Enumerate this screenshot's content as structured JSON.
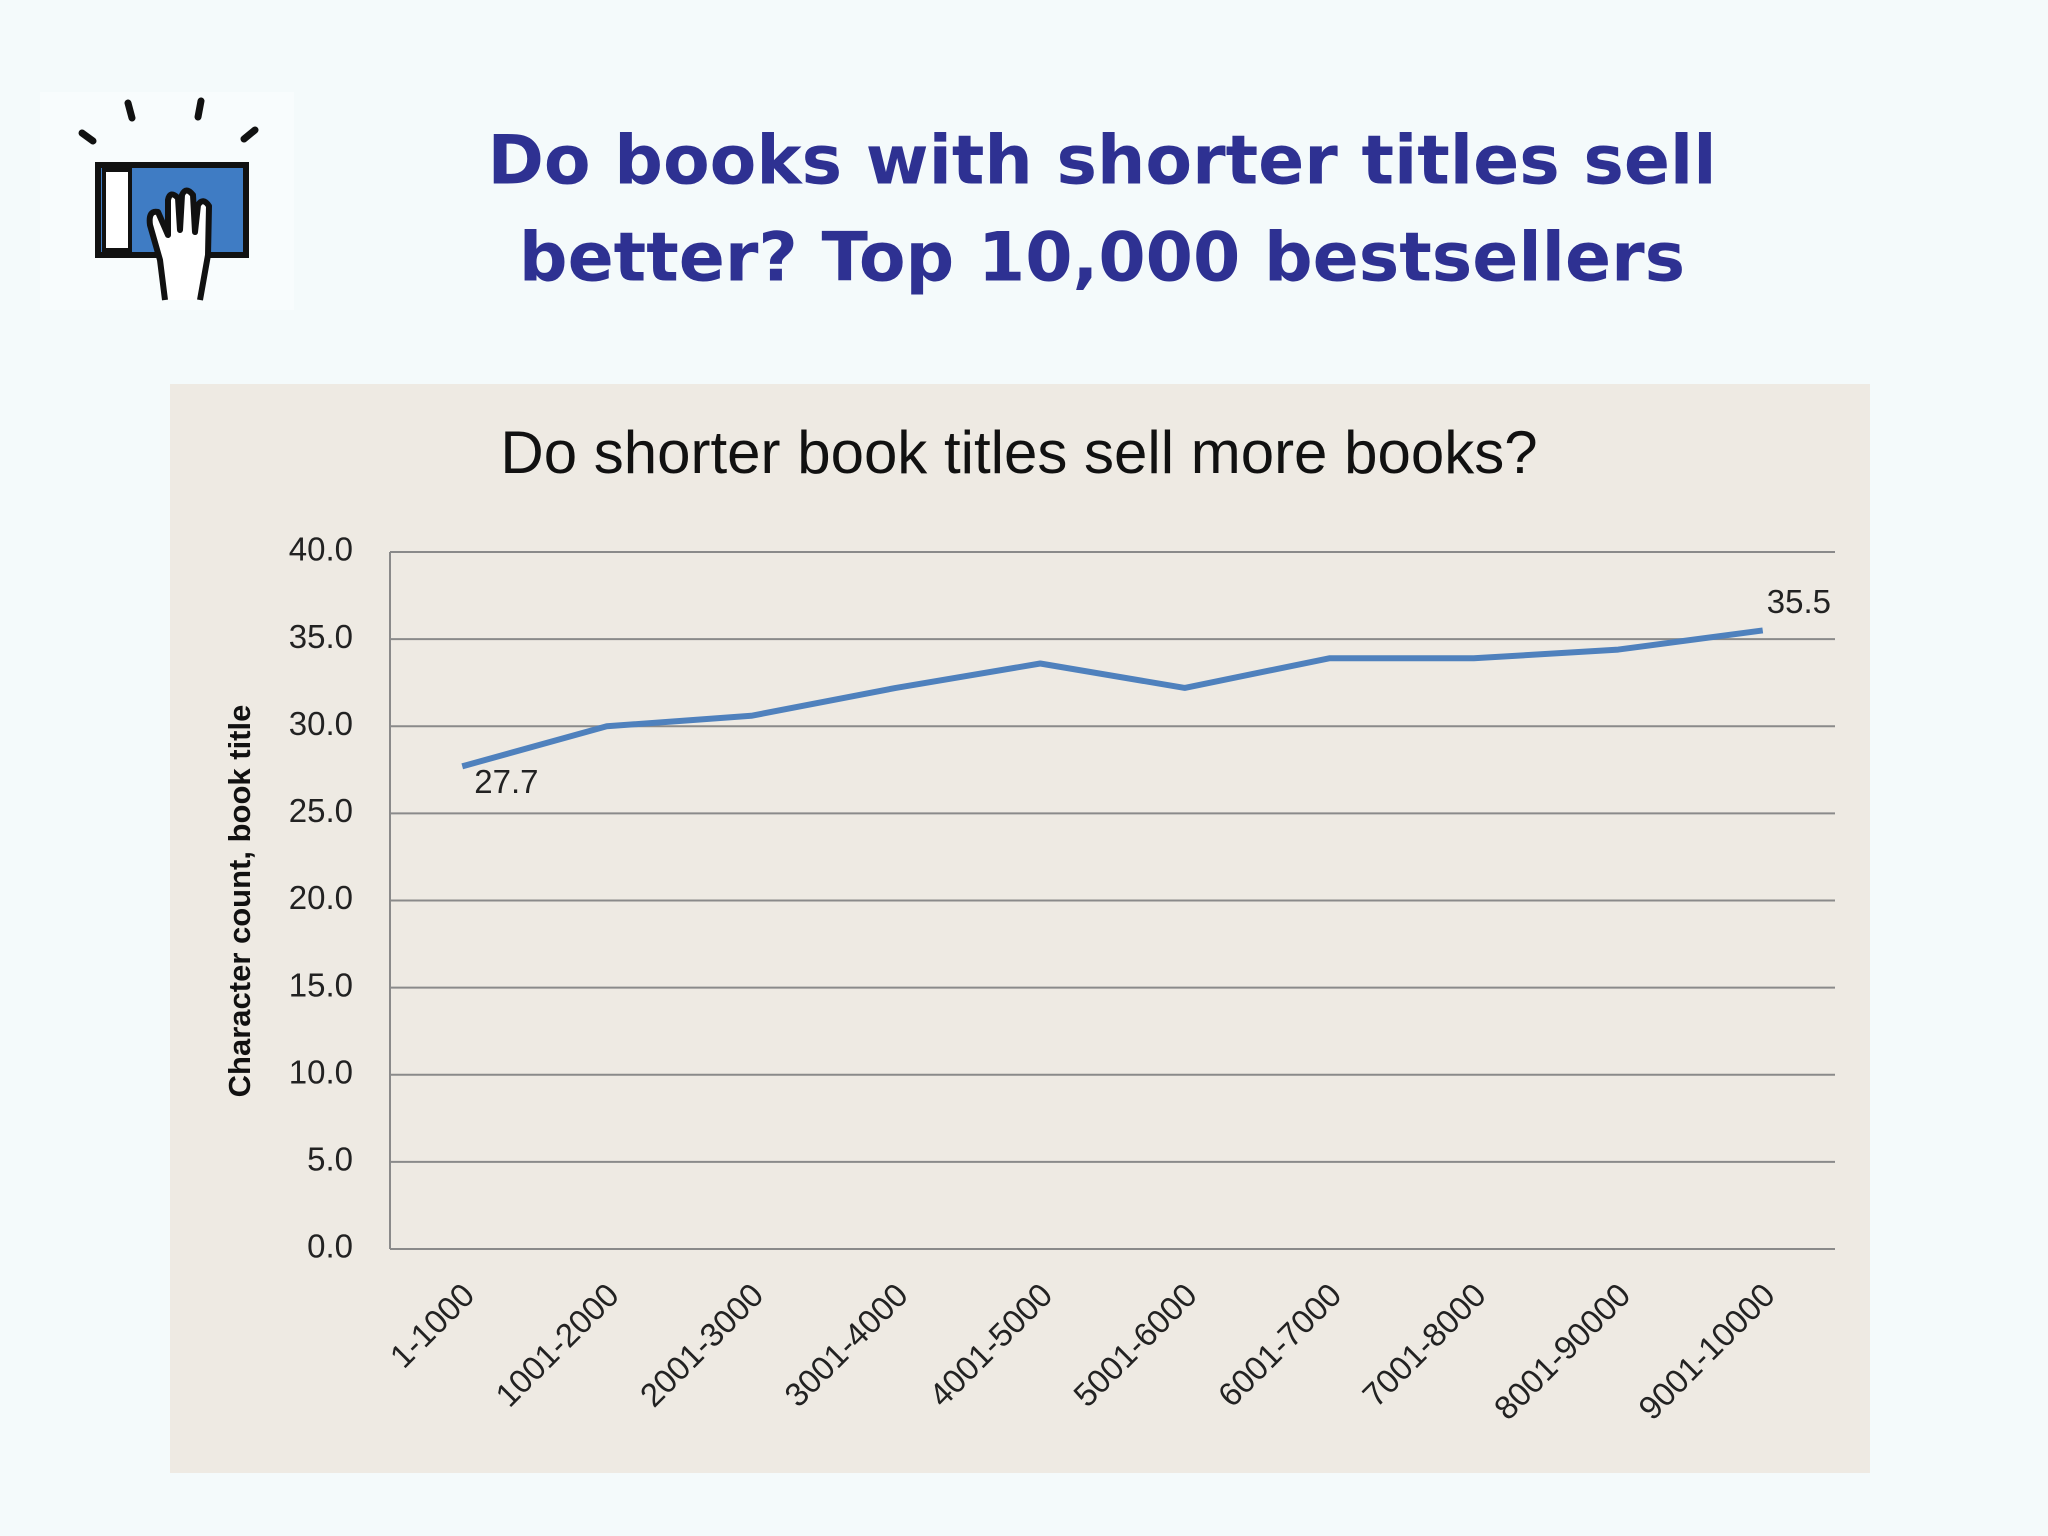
{
  "header": {
    "title_lines": [
      "Do books with shorter titles sell",
      "better? Top 10,000 bestsellers"
    ]
  },
  "chart_data": {
    "type": "line",
    "title": "Do shorter book titles sell more books?",
    "y_label": "Character count, book title",
    "categories": [
      "1-1000",
      "1001-2000",
      "2001-3000",
      "3001-4000",
      "4001-5000",
      "5001-6000",
      "6001-7000",
      "7001-8000",
      "8001-90000",
      "9001-10000"
    ],
    "series": [
      {
        "color": "#4f81bd",
        "values": [
          27.7,
          30.0,
          30.6,
          32.2,
          33.6,
          32.2,
          33.9,
          33.9,
          34.4,
          35.5
        ],
        "value_labels": [
          "27.7",
          null,
          null,
          null,
          null,
          null,
          null,
          null,
          null,
          "35.5"
        ]
      }
    ],
    "ylim": [
      0,
      40
    ],
    "yticks": [
      {
        "value": 0,
        "label": "0.0"
      },
      {
        "value": 5,
        "label": "5.0"
      },
      {
        "value": 10,
        "label": "10.0"
      },
      {
        "value": 15,
        "label": "15.0"
      },
      {
        "value": 20,
        "label": "20.0"
      },
      {
        "value": 25,
        "label": "25.0"
      },
      {
        "value": 30,
        "label": "30.0"
      },
      {
        "value": 35,
        "label": "35.0"
      },
      {
        "value": 40,
        "label": "40.0"
      }
    ],
    "grid": true
  }
}
